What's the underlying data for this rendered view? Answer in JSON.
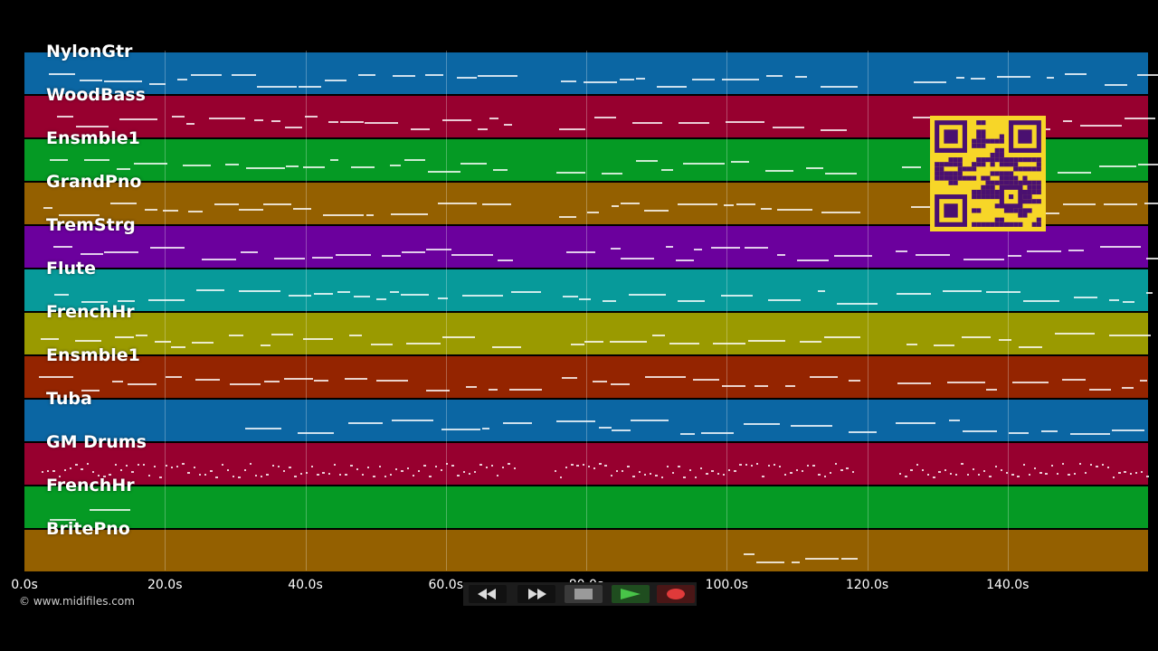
{
  "tracks": [
    {
      "name": "NylonGtr",
      "color": "#0b66a3"
    },
    {
      "name": "WoodBass",
      "color": "#97002f"
    },
    {
      "name": "Ensmble1",
      "color": "#059a24"
    },
    {
      "name": "GrandPno",
      "color": "#946000"
    },
    {
      "name": "TremStrg",
      "color": "#6b009d"
    },
    {
      "name": "Flute",
      "color": "#079a9a"
    },
    {
      "name": "FrenchHr",
      "color": "#9a9a00"
    },
    {
      "name": "Ensmble1",
      "color": "#942400"
    },
    {
      "name": "Tuba",
      "color": "#0b66a3"
    },
    {
      "name": "GM Drums",
      "color": "#97002f"
    },
    {
      "name": "FrenchHr",
      "color": "#059a24"
    },
    {
      "name": "BritePno",
      "color": "#946000"
    }
  ],
  "timeline": {
    "ticks": [
      "0.0s",
      "20.0s",
      "40.0s",
      "60.0s",
      "80.0s",
      "100.0s",
      "120.0s",
      "140.0s"
    ],
    "tick_seconds": [
      0,
      20,
      40,
      60,
      80,
      100,
      120,
      140
    ],
    "max_seconds": 160
  },
  "copyright": "© www.midifiles.com",
  "transport": {
    "rewind_icon": "rewind-icon",
    "forward_icon": "fast-forward-icon",
    "stop_icon": "stop-icon",
    "play_icon": "play-icon",
    "record_icon": "record-icon"
  },
  "colors": {
    "background": "#000000",
    "qr": "#f7d628",
    "qr_dark": "#4a1070"
  }
}
